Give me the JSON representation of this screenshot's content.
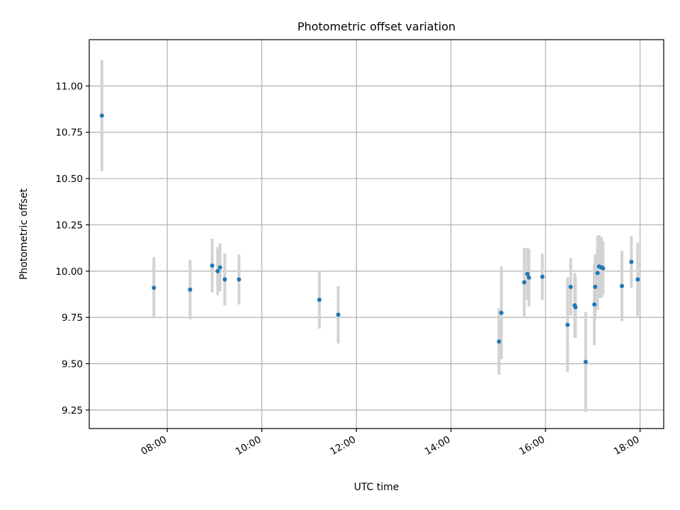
{
  "chart_data": {
    "type": "scatter",
    "title": "Photometric offset variation",
    "xlabel": "UTC time",
    "ylabel": "Photometric offset",
    "x_tick_labels": [
      "08:00",
      "10:00",
      "12:00",
      "14:00",
      "16:00",
      "18:00"
    ],
    "x_ticks_hours": [
      8,
      10,
      12,
      14,
      16,
      18
    ],
    "y_tick_labels": [
      "9.25",
      "9.50",
      "9.75",
      "10.00",
      "10.25",
      "10.50",
      "10.75",
      "11.00"
    ],
    "y_ticks": [
      9.25,
      9.5,
      9.75,
      10.0,
      10.25,
      10.5,
      10.75,
      11.0
    ],
    "xlim_hours": [
      6.35,
      18.5
    ],
    "ylim": [
      9.15,
      11.25
    ],
    "grid": true,
    "colors": {
      "point": "#1f77b4",
      "errorbar": "#d3d3d3",
      "grid": "#b0b0b0"
    },
    "points": [
      {
        "time": "06:37",
        "y": 10.84,
        "err": 0.3
      },
      {
        "time": "07:43",
        "y": 9.91,
        "err": 0.165
      },
      {
        "time": "08:29",
        "y": 9.9,
        "err": 0.16
      },
      {
        "time": "08:57",
        "y": 10.03,
        "err": 0.145
      },
      {
        "time": "09:04",
        "y": 10.0,
        "err": 0.13
      },
      {
        "time": "09:07",
        "y": 10.02,
        "err": 0.13
      },
      {
        "time": "09:13",
        "y": 9.955,
        "err": 0.14
      },
      {
        "time": "09:31",
        "y": 9.955,
        "err": 0.135
      },
      {
        "time": "11:13",
        "y": 9.845,
        "err": 0.155
      },
      {
        "time": "11:37",
        "y": 9.765,
        "err": 0.155
      },
      {
        "time": "15:01",
        "y": 9.62,
        "err": 0.18
      },
      {
        "time": "15:04",
        "y": 9.775,
        "err": 0.25
      },
      {
        "time": "15:33",
        "y": 9.94,
        "err": 0.185
      },
      {
        "time": "15:37",
        "y": 9.985,
        "err": 0.14
      },
      {
        "time": "15:39",
        "y": 9.965,
        "err": 0.155
      },
      {
        "time": "15:56",
        "y": 9.97,
        "err": 0.125
      },
      {
        "time": "16:28",
        "y": 9.71,
        "err": 0.255
      },
      {
        "time": "16:32",
        "y": 9.915,
        "err": 0.155
      },
      {
        "time": "16:37",
        "y": 9.815,
        "err": 0.175
      },
      {
        "time": "16:38",
        "y": 9.805,
        "err": 0.165
      },
      {
        "time": "16:51",
        "y": 9.51,
        "err": 0.27
      },
      {
        "time": "17:02",
        "y": 9.82,
        "err": 0.22
      },
      {
        "time": "17:03",
        "y": 9.915,
        "err": 0.175
      },
      {
        "time": "17:06",
        "y": 9.99,
        "err": 0.2
      },
      {
        "time": "17:08",
        "y": 10.025,
        "err": 0.17
      },
      {
        "time": "17:11",
        "y": 10.02,
        "err": 0.165
      },
      {
        "time": "17:13",
        "y": 10.015,
        "err": 0.145
      },
      {
        "time": "17:37",
        "y": 9.92,
        "err": 0.19
      },
      {
        "time": "17:49",
        "y": 10.05,
        "err": 0.14
      },
      {
        "time": "17:57",
        "y": 9.955,
        "err": 0.2
      }
    ]
  }
}
